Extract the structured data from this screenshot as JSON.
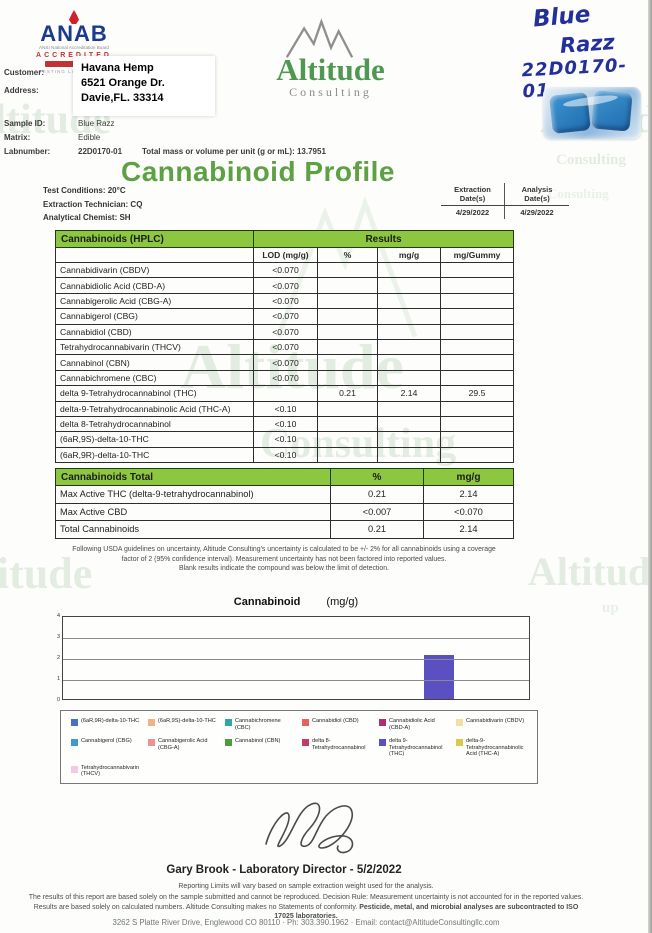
{
  "watermark": {
    "altitude": "Altitude",
    "ltitude": "ltitude",
    "consulting": "Consulting"
  },
  "anab": {
    "name": "ANAB",
    "board": "ANSI National Accreditation Board",
    "accredited": "ACCREDITED",
    "lab": "TESTING LABORATORY"
  },
  "info": {
    "customer_label": "Customer:",
    "address_label": "Address:",
    "customer_name": "Havana Hemp",
    "address_line1": "6521 Orange Dr.",
    "address_line2": "Davie,FL. 33314",
    "sample_id_label": "Sample ID:",
    "sample_id": "Blue Razz",
    "matrix_label": "Matrix:",
    "matrix": "Edible",
    "labnumber_label": "Labnumber:",
    "labnumber": "22D0170-01",
    "total_mass": "Total mass or volume per unit (g or mL): 13.7951"
  },
  "logo": {
    "name": "Altitude",
    "sub": "Consulting"
  },
  "handwriting": {
    "line1": "Blue",
    "line2": "Razz",
    "line3": "22D0170-01"
  },
  "title": "Cannabinoid Profile",
  "conditions": {
    "line1": "Test Conditions: 20°C",
    "line2": "Extraction Technician: CQ",
    "line3": "Analytical Chemist: SH"
  },
  "dates": {
    "extraction_label_1": "Extraction",
    "extraction_label_2": "Date(s)",
    "analysis_label_1": "Analysis",
    "analysis_label_2": "Date(s)",
    "extraction_date": "4/29/2022",
    "analysis_date": "4/29/2022"
  },
  "hplc": {
    "section_title": "Cannabinoids (HPLC)",
    "results_label": "Results",
    "columns": [
      "LOD (mg/g)",
      "%",
      "mg/g",
      "mg/Gummy"
    ],
    "rows": [
      {
        "name": "Cannabidivarin (CBDV)",
        "lod": "<0.070",
        "pct": "",
        "mgg": "",
        "gummy": ""
      },
      {
        "name": "Cannabidiolic Acid (CBD-A)",
        "lod": "<0.070",
        "pct": "",
        "mgg": "",
        "gummy": ""
      },
      {
        "name": "Cannabigerolic Acid (CBG-A)",
        "lod": "<0.070",
        "pct": "",
        "mgg": "",
        "gummy": ""
      },
      {
        "name": "Cannabigerol (CBG)",
        "lod": "<0.070",
        "pct": "",
        "mgg": "",
        "gummy": ""
      },
      {
        "name": "Cannabidiol (CBD)",
        "lod": "<0.070",
        "pct": "",
        "mgg": "",
        "gummy": ""
      },
      {
        "name": "Tetrahydrocannabivarin (THCV)",
        "lod": "<0.070",
        "pct": "",
        "mgg": "",
        "gummy": ""
      },
      {
        "name": "Cannabinol (CBN)",
        "lod": "<0.070",
        "pct": "",
        "mgg": "",
        "gummy": ""
      },
      {
        "name": "Cannabichromene (CBC)",
        "lod": "<0.070",
        "pct": "",
        "mgg": "",
        "gummy": ""
      },
      {
        "name": "delta 9-Tetrahydrocannabinol (THC)",
        "lod": "",
        "pct": "0.21",
        "mgg": "2.14",
        "gummy": "29.5"
      },
      {
        "name": "delta-9-Tetrahydrocannabinolic Acid (THC-A)",
        "lod": "<0.10",
        "pct": "",
        "mgg": "",
        "gummy": ""
      },
      {
        "name": "delta 8-Tetrahydrocannabinol",
        "lod": "<0.10",
        "pct": "",
        "mgg": "",
        "gummy": ""
      },
      {
        "name": "(6aR,9S)-delta-10-THC",
        "lod": "<0.10",
        "pct": "",
        "mgg": "",
        "gummy": ""
      },
      {
        "name": "(6aR,9R)-delta-10-THC",
        "lod": "<0.10",
        "pct": "",
        "mgg": "",
        "gummy": ""
      }
    ]
  },
  "totals": {
    "section_title": "Cannabinoids Total",
    "columns": [
      "%",
      "mg/g"
    ],
    "rows": [
      {
        "name": "Max Active THC (delta-9-tetrahydrocannabinol)",
        "pct": "0.21",
        "mgg": "2.14"
      },
      {
        "name": "Max Active CBD",
        "pct": "<0.007",
        "mgg": "<0.070"
      },
      {
        "name": "Total Cannabinoids",
        "pct": "0.21",
        "mgg": "2.14"
      }
    ]
  },
  "footnotes": {
    "line1": "Following USDA guidelines on uncertainty, Altitude Consulting's uncertainty is calculated to be +/- 2% for all cannabinoids using a coverage",
    "line2": "factor of 2 (95% confidence interval). Measurement uncertainty has not been factored into reported values.",
    "line3": "Blank results indicate the compound was below the limit of detection."
  },
  "chart_data": {
    "type": "bar",
    "title": "Cannabinoid",
    "unit_label": "(mg/g)",
    "ylabel": "mg/g",
    "ylim": [
      0,
      4
    ],
    "yticks": [
      0,
      1,
      2,
      3,
      4
    ],
    "grid": true,
    "legend_position": "bottom",
    "categories": [
      "(6aR,9R)-delta-10-THC",
      "(6aR,9S)-delta-10-THC",
      "Cannabichromene (CBC)",
      "Cannabidiol (CBD)",
      "Cannabidiolic Acid (CBD-A)",
      "Cannabidivarin (CBDV)",
      "Cannabigerol (CBG)",
      "Cannabigerolic Acid (CBG-A)",
      "Cannabinol (CBN)",
      "delta 8-Tetrahydrocannabinol",
      "delta 9-Tetrahydrocannabinol (THC)",
      "delta-9-Tetrahydrocannabinolic Acid (THC-A)",
      "Tetrahydrocannabivarin (THCV)"
    ],
    "values": [
      0,
      0,
      0,
      0,
      0,
      0,
      0,
      0,
      0,
      0,
      2.14,
      0,
      0
    ],
    "colors": [
      "#4472c4",
      "#f4b183",
      "#2ea8a0",
      "#e2625d",
      "#b02d6e",
      "#f2dfa7",
      "#3d9bd1",
      "#ef9191",
      "#4f9a3d",
      "#c43a67",
      "#5b50c2",
      "#d9c94e",
      "#efcbe4"
    ]
  },
  "signature_caption": "Gary Brook - Laboratory Director - 5/2/2022",
  "footer": {
    "line1": "Reporting Limits will vary based on sample extraction weight used for the analysis.",
    "line2": "The results of this report are based solely on the sample submitted and cannot be reproduced. Decision Rule: Measurement uncertainty is not accounted for in the reported values.",
    "line3": "Results are based solely on calculated numbers. Altitude Consulting makes no Statements of conformity.",
    "line3_bold": "Pesticide, metal, and microbial analyses are subcontracted to ISO",
    "line4_bold": "17025 laboratories.",
    "contact": "3262 S Platte River Drive, Englewood CO 80110   ·   Ph: 303.390.1962   ·   Email: contact@AltitudeConsultingllc.com"
  }
}
